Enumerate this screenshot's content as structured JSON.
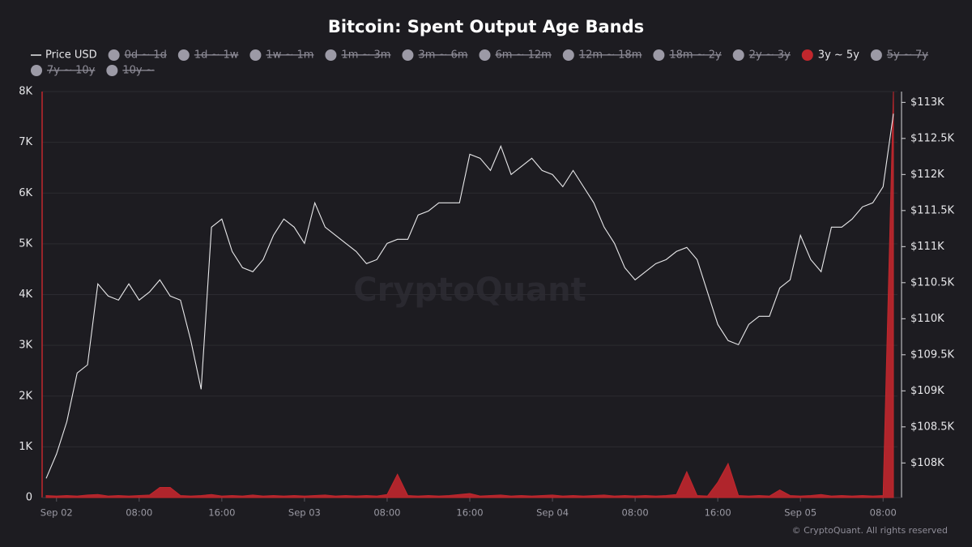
{
  "chart_data": {
    "type": "line_area",
    "title": "Bitcoin: Spent Output Age Bands",
    "watermark": "CryptoQuant",
    "footer": "© CryptoQuant. All rights reserved",
    "x": [
      null,
      "Sep 02",
      null,
      null,
      null,
      null,
      null,
      null,
      null,
      "08:00",
      null,
      null,
      null,
      null,
      null,
      null,
      null,
      "16:00",
      null,
      null,
      null,
      null,
      null,
      null,
      null,
      "Sep 03",
      null,
      null,
      null,
      null,
      null,
      null,
      null,
      "08:00",
      null,
      null,
      null,
      null,
      null,
      null,
      null,
      "16:00",
      null,
      null,
      null,
      null,
      null,
      null,
      null,
      "Sep 04",
      null,
      null,
      null,
      null,
      null,
      null,
      null,
      "08:00",
      null,
      null,
      null,
      null,
      null,
      null,
      null,
      "16:00",
      null,
      null,
      null,
      null,
      null,
      null,
      null,
      "Sep 05",
      null,
      null,
      null,
      null,
      null,
      null,
      null,
      "08:00",
      null
    ],
    "series": [
      {
        "name": "Price USD",
        "color": "#e8e8ea",
        "axis": "y2",
        "kind": "line",
        "values": [
          107786,
          108124,
          108573,
          109247,
          109360,
          110483,
          110315,
          110258,
          110483,
          110258,
          110371,
          110539,
          110315,
          110258,
          109697,
          109022,
          111270,
          111382,
          110933,
          110708,
          110652,
          110820,
          111157,
          111382,
          111270,
          111045,
          111607,
          111270,
          111157,
          111045,
          110933,
          110764,
          110820,
          111045,
          111101,
          111101,
          111438,
          111494,
          111607,
          111607,
          111607,
          112281,
          112225,
          112056,
          112393,
          112000,
          112112,
          112225,
          112056,
          112000,
          111831,
          112056,
          111831,
          111607,
          111270,
          111045,
          110708,
          110539,
          110652,
          110764,
          110820,
          110933,
          110989,
          110820,
          110371,
          109921,
          109697,
          109640,
          109921,
          110034,
          110034,
          110427,
          110539,
          111157,
          110820,
          110652,
          111270,
          111270,
          111382,
          111551,
          111607,
          111831,
          112843
        ]
      },
      {
        "name": "3y ~ 5y",
        "color": "#c1272d",
        "axis": "y",
        "kind": "area",
        "values": [
          40,
          30,
          40,
          30,
          50,
          60,
          30,
          40,
          30,
          40,
          50,
          200,
          200,
          40,
          30,
          40,
          60,
          30,
          40,
          30,
          50,
          30,
          40,
          30,
          40,
          30,
          40,
          50,
          30,
          40,
          30,
          40,
          30,
          60,
          460,
          40,
          30,
          40,
          30,
          40,
          60,
          80,
          30,
          40,
          50,
          30,
          40,
          30,
          40,
          50,
          30,
          40,
          30,
          40,
          50,
          30,
          40,
          30,
          40,
          30,
          40,
          60,
          510,
          40,
          30,
          300,
          670,
          40,
          30,
          40,
          30,
          150,
          40,
          30,
          40,
          60,
          30,
          40,
          30,
          40,
          30,
          40,
          8000
        ]
      }
    ],
    "hidden_series": [
      "0d ~ 1d",
      "1d ~ 1w",
      "1w ~ 1m",
      "1m ~ 3m",
      "3m ~ 6m",
      "6m ~ 12m",
      "12m ~ 18m",
      "18m ~ 2y",
      "2y ~ 3y",
      "5y ~ 7y",
      "7y ~ 10y",
      "10y ~"
    ],
    "hidden_color": "#9c9aa6",
    "ylim": [
      0,
      8000
    ],
    "yticks": [
      0,
      {
        "value": 1000,
        "label": "1K"
      },
      {
        "value": 2000,
        "label": "2K"
      },
      {
        "value": 3000,
        "label": "3K"
      },
      {
        "value": 4000,
        "label": "4K"
      },
      {
        "value": 5000,
        "label": "5K"
      },
      {
        "value": 6000,
        "label": "6K"
      },
      {
        "value": 7000,
        "label": "7K"
      },
      {
        "value": 8000,
        "label": "8K"
      }
    ],
    "y2lim": [
      107520,
      113150
    ],
    "y2ticks": [
      {
        "value": 108000,
        "label": "$108K"
      },
      {
        "value": 108500,
        "label": "$108.5K"
      },
      {
        "value": 109000,
        "label": "$109K"
      },
      {
        "value": 109500,
        "label": "$109.5K"
      },
      {
        "value": 110000,
        "label": "$110K"
      },
      {
        "value": 110500,
        "label": "$110.5K"
      },
      {
        "value": 111000,
        "label": "$111K"
      },
      {
        "value": 111500,
        "label": "$111.5K"
      },
      {
        "value": 112000,
        "label": "$112K"
      },
      {
        "value": 112500,
        "label": "$112.5K"
      },
      {
        "value": 113000,
        "label": "$113K"
      }
    ],
    "grid": true
  }
}
